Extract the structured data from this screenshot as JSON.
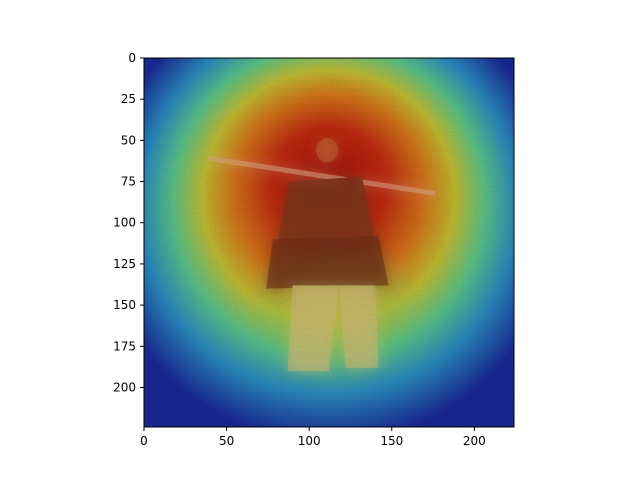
{
  "chart_data": {
    "type": "heatmap",
    "title": "",
    "xlabel": "",
    "ylabel": "",
    "xlim": [
      0,
      224
    ],
    "ylim": [
      224,
      0
    ],
    "x_ticks": [
      0,
      50,
      100,
      150,
      200
    ],
    "y_ticks": [
      0,
      25,
      50,
      75,
      100,
      125,
      150,
      175,
      200
    ],
    "x_tick_labels": [
      "0",
      "50",
      "100",
      "150",
      "200"
    ],
    "y_tick_labels": [
      "0",
      "25",
      "50",
      "75",
      "100",
      "125",
      "150",
      "175",
      "200"
    ],
    "colormap": "jet",
    "grid": false,
    "legend": "none",
    "image_size": [
      224,
      224
    ],
    "overlay": {
      "description_colors": {
        "low": "#1f2a9c",
        "mid_low": "#2bb3c9",
        "mid": "#9dd34a",
        "mid_high": "#f0c419",
        "high": "#b51a0c"
      },
      "peak_region": {
        "x": [
          45,
          175
        ],
        "y": [
          35,
          105
        ],
        "intensity": 1.0
      },
      "secondary_region": {
        "x": [
          80,
          150
        ],
        "y": [
          105,
          200
        ],
        "intensity": 0.6
      },
      "edge_intensity": 0.1
    },
    "subject": {
      "figure_color": "#7a3b1e",
      "pants_color": "#d8c47a",
      "rifle_color": "#e6b08a",
      "background_grass_color": "#4a6a5e"
    }
  }
}
